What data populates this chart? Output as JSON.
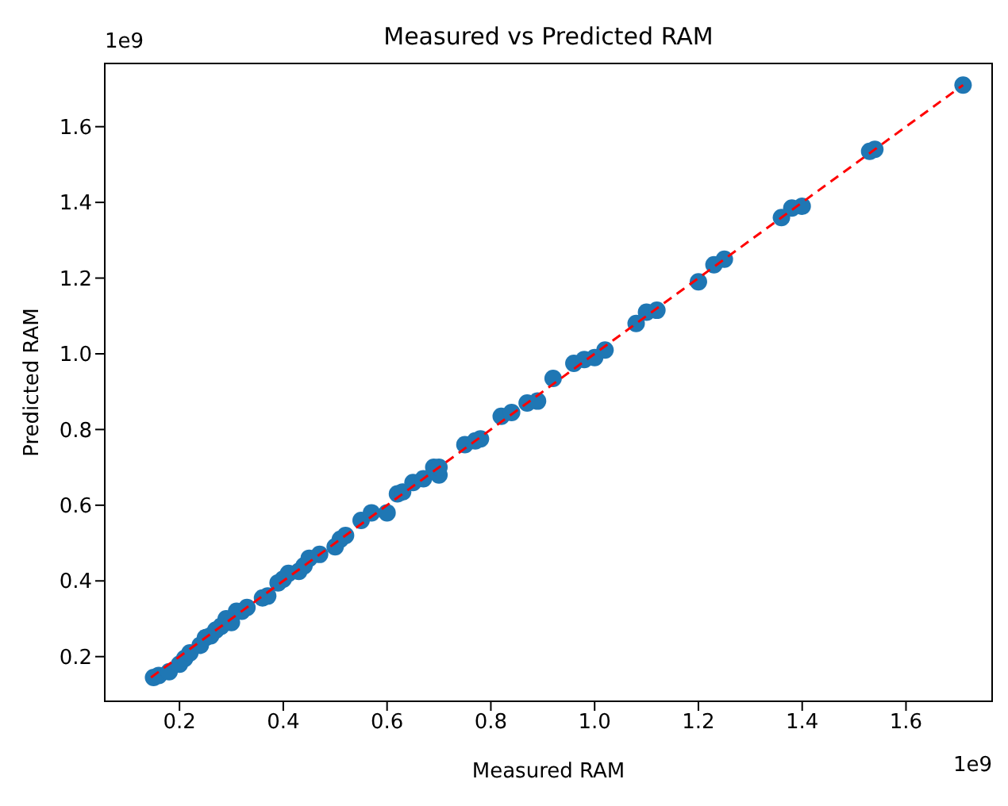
{
  "chart_data": {
    "type": "scatter",
    "title": "Measured vs Predicted RAM",
    "xlabel": "Measured RAM",
    "ylabel": "Predicted RAM",
    "annotations": [
      "1e9",
      "1e9"
    ],
    "xlim": [
      0.056,
      1.766
    ],
    "ylim": [
      0.082,
      1.767
    ],
    "xticks": [
      0.2,
      0.4,
      0.6,
      0.8,
      {
        "value": 1,
        "label": "1.0"
      },
      1.2,
      1.4,
      1.6
    ],
    "yticks": [
      0.2,
      0.4,
      0.6,
      0.8,
      {
        "value": 1,
        "label": "1.0"
      },
      1.2,
      1.4,
      1.6
    ],
    "grid": false,
    "legend": false,
    "series": [
      {
        "color": "#1f77b4",
        "marker": "circle",
        "x": [
          0.15,
          0.16,
          0.18,
          0.2,
          0.21,
          0.22,
          0.24,
          0.25,
          0.26,
          0.27,
          0.28,
          0.29,
          0.3,
          0.31,
          0.32,
          0.33,
          0.36,
          0.37,
          0.39,
          0.4,
          0.41,
          0.43,
          0.44,
          0.45,
          0.47,
          0.5,
          0.51,
          0.52,
          0.55,
          0.57,
          0.6,
          0.62,
          0.63,
          0.65,
          0.67,
          0.69,
          0.7,
          0.7,
          0.75,
          0.77,
          0.78,
          0.82,
          0.84,
          0.87,
          0.89,
          0.92,
          0.96,
          0.98,
          1.0,
          1.02,
          1.08,
          1.1,
          1.12,
          1.2,
          1.23,
          1.25,
          1.36,
          1.38,
          1.4,
          1.53,
          1.54,
          1.71
        ],
        "values": [
          0.145,
          0.15,
          0.16,
          0.18,
          0.195,
          0.21,
          0.23,
          0.25,
          0.255,
          0.27,
          0.28,
          0.3,
          0.29,
          0.32,
          0.32,
          0.33,
          0.355,
          0.36,
          0.395,
          0.405,
          0.42,
          0.425,
          0.44,
          0.46,
          0.47,
          0.49,
          0.51,
          0.52,
          0.56,
          0.58,
          0.58,
          0.63,
          0.635,
          0.66,
          0.67,
          0.7,
          0.68,
          0.7,
          0.76,
          0.77,
          0.775,
          0.835,
          0.845,
          0.87,
          0.875,
          0.935,
          0.975,
          0.985,
          0.99,
          1.01,
          1.08,
          1.11,
          1.115,
          1.19,
          1.235,
          1.25,
          1.36,
          1.385,
          1.39,
          1.535,
          1.54,
          1.71
        ]
      },
      {
        "type": "line",
        "color": "#ff0000",
        "line_style": "dashed",
        "marker": "none",
        "x": [
          0.145,
          1.71
        ],
        "values": [
          0.145,
          1.71
        ]
      }
    ]
  }
}
